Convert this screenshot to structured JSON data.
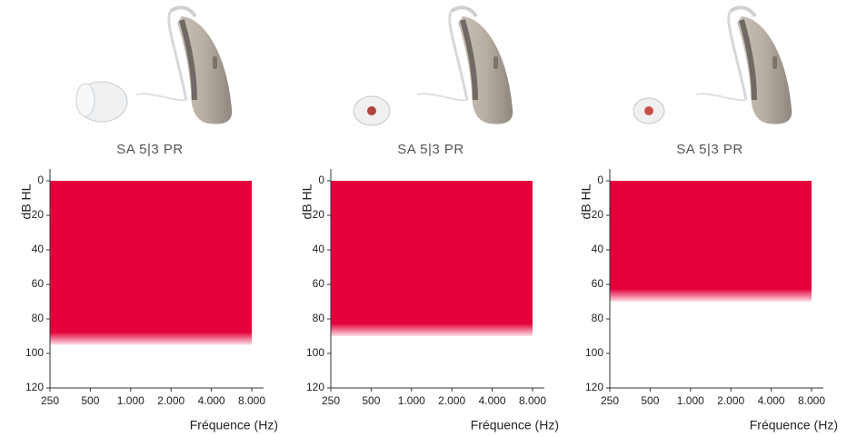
{
  "chart_data": [
    {
      "type": "area",
      "title": "SA 5|3 PR",
      "ylabel": "dB HL",
      "xlabel": "Fréquence (Hz)",
      "xscale": "log",
      "y_inverted": true,
      "x": [
        250,
        500,
        1000,
        2000,
        4000,
        8000
      ],
      "values": [
        95,
        95,
        95,
        95,
        95,
        95
      ],
      "color": "#e4003b",
      "xlim": [
        250,
        8000
      ],
      "xticks": [
        250,
        500,
        {
          "value": 1000,
          "label": "1.000"
        },
        {
          "value": 2000,
          "label": "2.000"
        },
        {
          "value": 4000,
          "label": "4.000"
        },
        {
          "value": 8000,
          "label": "8.000"
        }
      ],
      "ylim": [
        0,
        120
      ],
      "yticks": [
        0,
        20,
        40,
        60,
        80,
        100,
        120
      ]
    },
    {
      "type": "area",
      "title": "SA 5|3 PR",
      "ylabel": "dB HL",
      "xlabel": "Fréquence (Hz)",
      "xscale": "log",
      "y_inverted": true,
      "x": [
        250,
        500,
        1000,
        2000,
        4000,
        8000
      ],
      "values": [
        90,
        90,
        90,
        90,
        90,
        90
      ],
      "color": "#e4003b",
      "xlim": [
        250,
        8000
      ],
      "xticks": [
        250,
        500,
        {
          "value": 1000,
          "label": "1.000"
        },
        {
          "value": 2000,
          "label": "2.000"
        },
        {
          "value": 4000,
          "label": "4.000"
        },
        {
          "value": 8000,
          "label": "8.000"
        }
      ],
      "ylim": [
        0,
        120
      ],
      "yticks": [
        0,
        20,
        40,
        60,
        80,
        100,
        120
      ]
    },
    {
      "type": "area",
      "title": "SA 5|3 PR",
      "ylabel": "dB HL",
      "xlabel": "Fréquence (Hz)",
      "xscale": "log",
      "y_inverted": true,
      "x": [
        250,
        500,
        1000,
        2000,
        4000,
        8000
      ],
      "values": [
        70,
        70,
        70,
        70,
        70,
        70
      ],
      "color": "#e4003b",
      "xlim": [
        250,
        8000
      ],
      "xticks": [
        250,
        500,
        {
          "value": 1000,
          "label": "1.000"
        },
        {
          "value": 2000,
          "label": "2.000"
        },
        {
          "value": 4000,
          "label": "4.000"
        },
        {
          "value": 8000,
          "label": "8.000"
        }
      ],
      "ylim": [
        0,
        120
      ],
      "yticks": [
        0,
        20,
        40,
        60,
        80,
        100,
        120
      ]
    }
  ]
}
